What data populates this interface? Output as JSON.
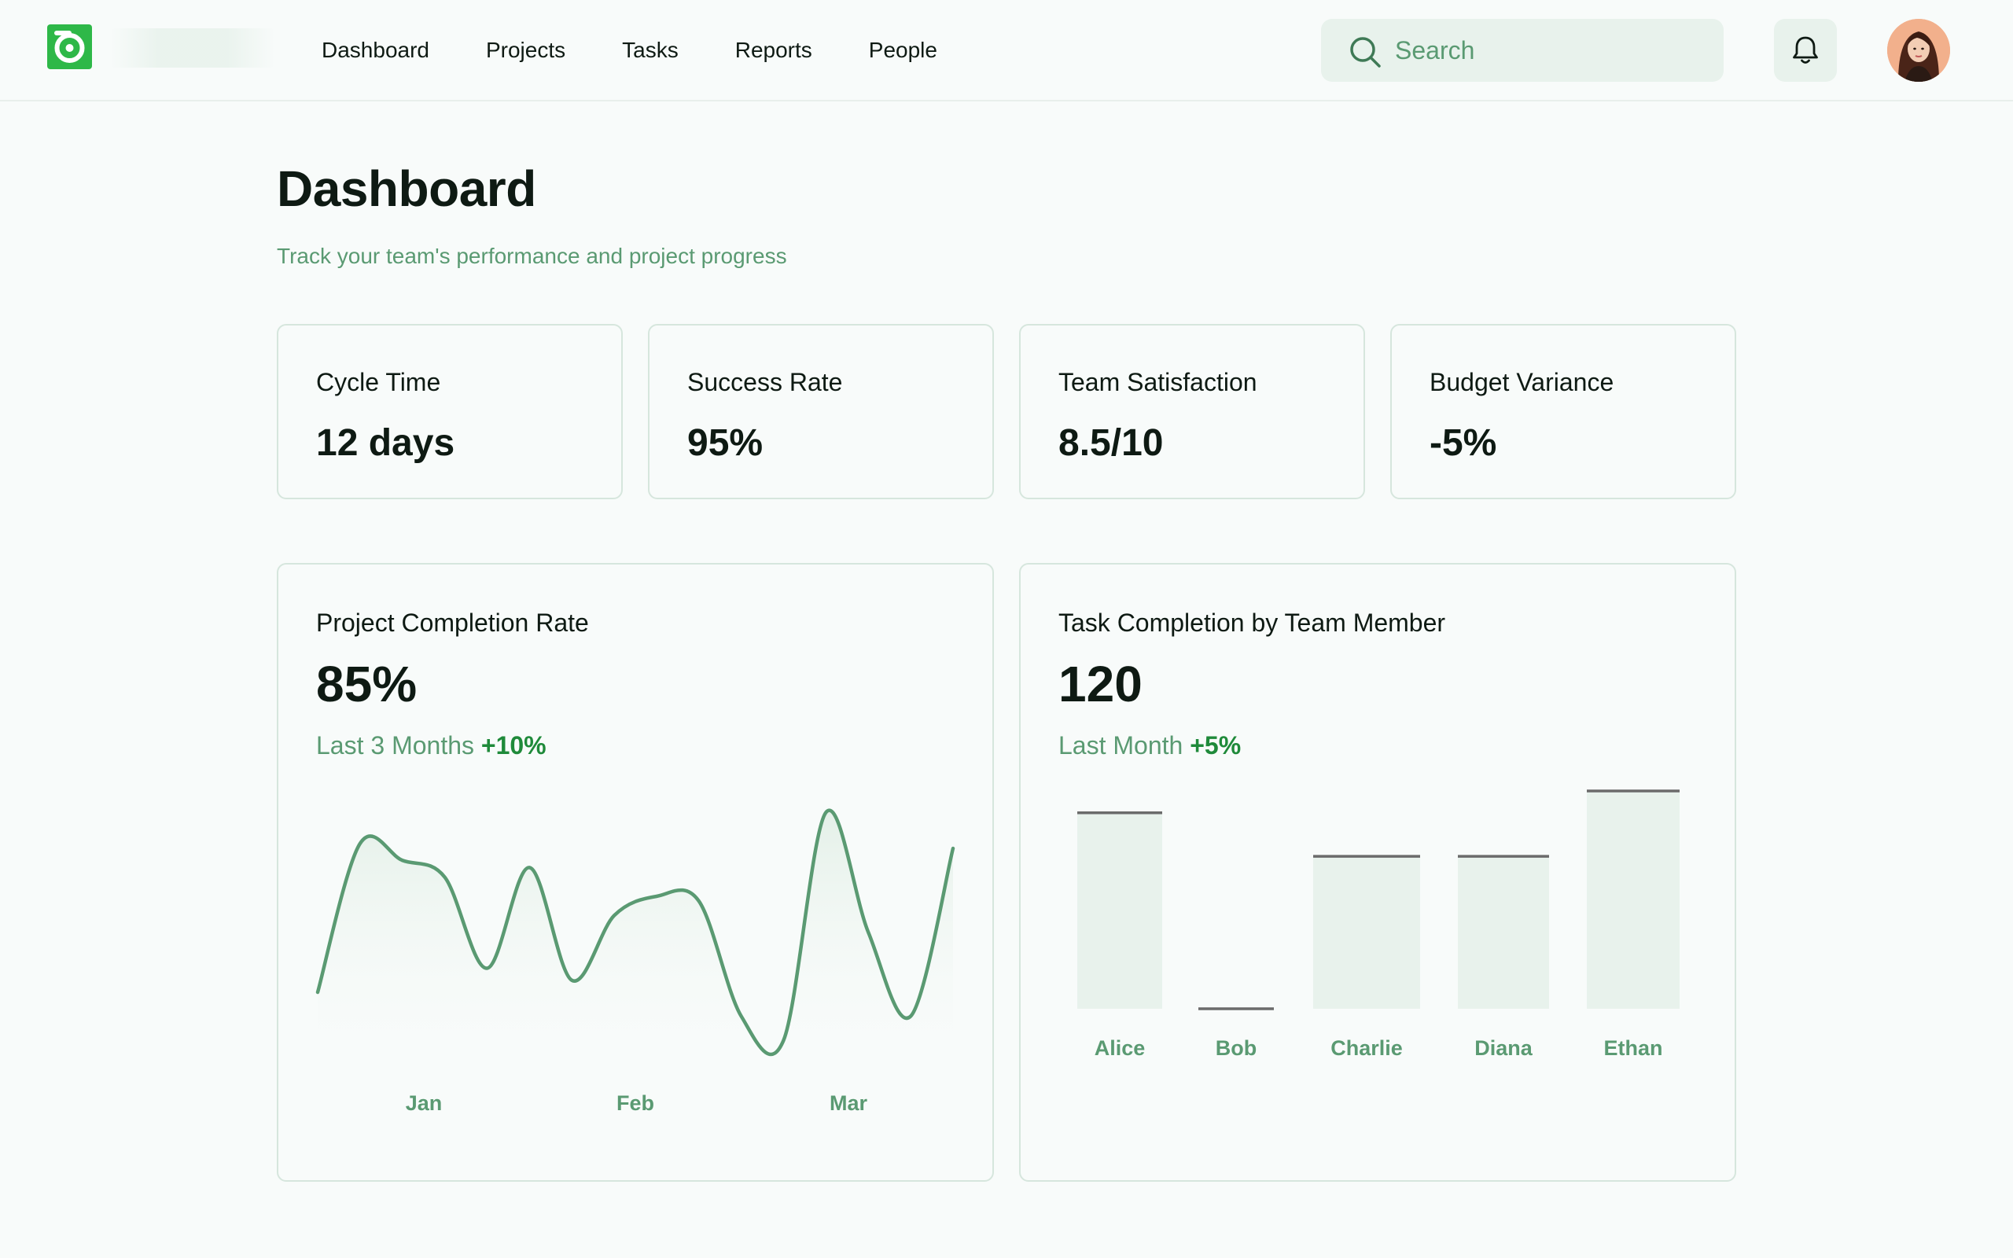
{
  "header": {
    "nav": [
      "Dashboard",
      "Projects",
      "Tasks",
      "Reports",
      "People"
    ],
    "search_placeholder": "Search",
    "icons": {
      "logo": "app-logo-icon",
      "search": "search-icon",
      "notifications": "bell-icon"
    }
  },
  "page": {
    "title": "Dashboard",
    "subtitle": "Track your team's performance and project progress"
  },
  "kpis": [
    {
      "label": "Cycle Time",
      "value": "12 days"
    },
    {
      "label": "Success Rate",
      "value": "95%"
    },
    {
      "label": "Team Satisfaction",
      "value": "8.5/10"
    },
    {
      "label": "Budget Variance",
      "value": "-5%"
    }
  ],
  "colors": {
    "accent": "#2eb848",
    "line": "#5a9a72",
    "muted_text": "#5a9a72",
    "delta": "#1f8a3a",
    "bar_fill": "#e8f2ec",
    "bar_top": "#6b6b6b"
  },
  "cards": {
    "completion": {
      "title": "Project Completion Rate",
      "value": "85%",
      "period": "Last 3 Months",
      "delta": "+10%"
    },
    "tasks": {
      "title": "Task Completion by Team Member",
      "value": "120",
      "period": "Last Month",
      "delta": "+5%"
    }
  },
  "chart_data": [
    {
      "type": "line",
      "title": "Project Completion Rate",
      "x_ticks": [
        "Jan",
        "Feb",
        "Mar"
      ],
      "values": [
        20,
        82,
        75,
        68,
        30,
        72,
        25,
        52,
        60,
        58,
        10,
        0,
        95,
        45,
        10,
        80
      ],
      "ylim": [
        0,
        100
      ],
      "grid": false
    },
    {
      "type": "bar",
      "title": "Task Completion by Team Member",
      "categories": [
        "Alice",
        "Bob",
        "Charlie",
        "Diana",
        "Ethan"
      ],
      "values": [
        90,
        0,
        70,
        70,
        100
      ],
      "ylim": [
        0,
        100
      ],
      "grid": false
    }
  ]
}
